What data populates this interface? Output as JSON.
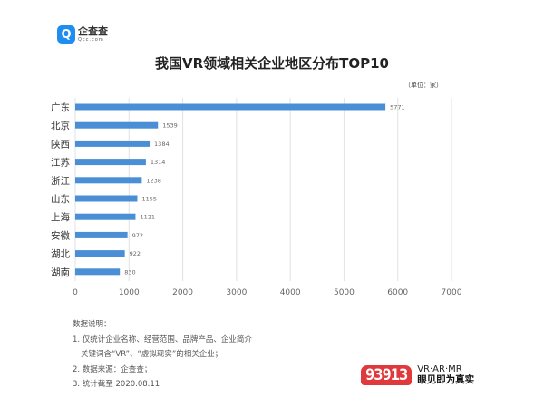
{
  "header": {
    "logo_cn": "企查查",
    "logo_en": "Qcc.com",
    "logo_glyph": "Q"
  },
  "chart_data": {
    "type": "bar",
    "orientation": "horizontal",
    "title": "我国VR领域相关企业地区分布TOP10",
    "unit": "（单位：家）",
    "categories": [
      "广东",
      "北京",
      "陕西",
      "江苏",
      "浙江",
      "山东",
      "上海",
      "安徽",
      "湖北",
      "湖南"
    ],
    "values": [
      5771,
      1539,
      1384,
      1314,
      1238,
      1155,
      1121,
      972,
      922,
      830
    ],
    "xlim": [
      0,
      7000
    ],
    "xticks": [
      0,
      1000,
      2000,
      3000,
      4000,
      5000,
      6000,
      7000
    ],
    "grid": true,
    "bar_color": "#4a8fd6"
  },
  "notes": {
    "heading": "数据说明：",
    "line1": "1. 仅统计企业名称、经营范围、品牌产品、企业简介",
    "line1b": "关键词含“VR”、“虚拟现实”的相关企业；",
    "line2": "2. 数据来源：企查查；",
    "line3": "3. 统计截至 2020.08.11"
  },
  "brand": {
    "badge": "93913",
    "en": "VR·AR·MR",
    "cn": "眼见即为真实",
    "color": "#e0393c"
  }
}
